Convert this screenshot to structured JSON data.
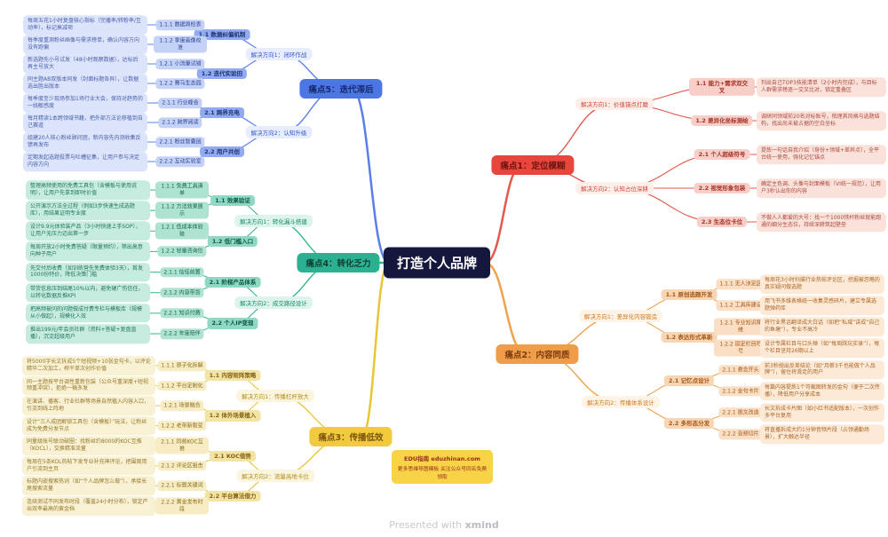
{
  "center": {
    "title": "打造个人品牌",
    "bg": "#15173d",
    "fg": "#ffffff"
  },
  "watermark": {
    "prefix": "Presented with",
    "brand": "xmind"
  },
  "footer_note": {
    "line1": "EDU指南 eduzhinan.com",
    "line2": "更多思维导图模板 关注公众号同名免费领取",
    "bg": "#f8d348",
    "fg": "#9b2c1c"
  },
  "branches": [
    {
      "label": "痛点1：定位模糊",
      "colors": {
        "label_bg": "#e8453c",
        "label_fg": "#6d1511",
        "line": "#e25a4e",
        "dir_bg": "#fdeeea",
        "dir_fg": "#cc4438",
        "topic_bg": "#f7cfc8",
        "topic_fg": "#a63327",
        "leaf_bg": "#f7cfc8",
        "leaf_fg": "#a63327",
        "detail_bg": "#fae2db",
        "detail_fg": "#ad4a3d"
      },
      "directions": [
        {
          "label": "解决方向1：价值锚点打磨",
          "topics": [
            {
              "label": "1.1 能力+需求双交叉",
              "detail": "列出自己TOP3技能清单（2小时内完成），与目标人群需求榜逐一交叉比对，锁定重叠区"
            },
            {
              "label": "1.2 差异化坐标测绘",
              "detail": "调研同领域前20名对标账号，梳理其风格与选题结构，找出尚未被占据的空白坐标"
            }
          ]
        },
        {
          "label": "解决方向2：认知占位深耕",
          "topics": [
            {
              "label": "2.1 个人超级符号",
              "detail": "提炼一句话自我介绍（身份+领域+差异点），全平台统一使用，强化记忆锚点"
            },
            {
              "label": "2.2 视觉形象包装",
              "detail": "确定主色调、头像与封面模板（VI统一规范），让用户3秒认出你的内容"
            },
            {
              "label": "2.3 生态位卡位",
              "detail": "不做人人都爱的大号：找一个1000铁杆粉丝就能跑通的细分生态位，持续深耕筑起壁垒"
            }
          ]
        }
      ]
    },
    {
      "label": "痛点2：内容同质",
      "colors": {
        "label_bg": "#ef9d48",
        "label_fg": "#7d3b0e",
        "line": "#f0a34e",
        "dir_bg": "#fdf3e6",
        "dir_fg": "#cf7a1f",
        "topic_bg": "#f8d6b4",
        "topic_fg": "#a55716",
        "leaf_bg": "#fadfc4",
        "leaf_fg": "#a55716",
        "detail_bg": "#fcead7",
        "detail_fg": "#ab6426"
      },
      "directions": [
        {
          "label": "解决方向1：差异化内容锻造",
          "topics": [
            {
              "label": "1.1 原创选题开发",
              "leaves": [
                {
                  "label": "1.1.1 无人涉足区",
                  "detail": "每周花3小时扫描行业热帖评论区，挖掘被忽略的真实疑问做选题"
                },
                {
                  "label": "1.1.2 工具库建设",
                  "detail": "用飞书多维表格统一收集灵感碎片，建立专属选题弹药库"
                }
              ]
            },
            {
              "label": "1.2 表达形式革新",
              "leaves": [
                {
                  "label": "1.2.1 专业知识降维",
                  "detail": "将行业黑话翻译成大白话（如把“私域”讲成“自己的鱼塘”），专业不高冷"
                },
                {
                  "label": "1.2.2 固定栏目符号",
                  "detail": "设计专属栏目与口头禅（如“每周踩坑实录”），每个栏目坚持26期以上"
                }
              ]
            }
          ]
        },
        {
          "label": "解决方向2：传播体系设计",
          "topics": [
            {
              "label": "2.1 记忆点设计",
              "leaves": [
                {
                  "label": "2.1.1 悬念开头",
                  "detail": "前3秒抛出反差结论（如“月薪3千也能做个人品牌”），留住将滑走的用户"
                },
                {
                  "label": "2.1.2 金句卡片",
                  "detail": "每篇内容提炼1个可截图转发的金句（便于二次传播），降低用户分享成本"
                }
              ]
            },
            {
              "label": "2.2 多形态分发",
              "leaves": [
                {
                  "label": "2.2.1 图文改造",
                  "detail": "长文拆成卡片图（如小红书适配版本），一次创作多平台复用"
                },
                {
                  "label": "2.2.2 音频切片",
                  "detail": "将直播拆成大约1分钟音频片段（占领通勤场景），扩大触达半径"
                }
              ]
            }
          ]
        }
      ]
    },
    {
      "label": "痛点3：传播低效",
      "colors": {
        "label_bg": "#f3c93d",
        "label_fg": "#7c5410",
        "line": "#e9c636",
        "dir_bg": "#fbf5de",
        "dir_fg": "#b08c1e",
        "topic_bg": "#f3e3a4",
        "topic_fg": "#846414",
        "leaf_bg": "#f7ecc3",
        "leaf_fg": "#8a6d1d",
        "detail_bg": "#f9f1d4",
        "detail_fg": "#95782a"
      },
      "directions": [
        {
          "label": "解决方向1：传播杠杆放大",
          "topics": [
            {
              "label": "1.1 内容矩阵策略",
              "leaves": [
                {
                  "label": "1.1.1 原子化拆解",
                  "detail": "将5000字长文拆成5个短视频+10张金句卡，以评论精华二次加工，榨干单次创作价值"
                },
                {
                  "label": "1.1.2 平台定制化",
                  "detail": "同一主题按平台调性重新包装（公众号重深度+短视频重冲突），拒绝一稿多发"
                }
              ]
            },
            {
              "label": "1.2 体外场景植入",
              "leaves": [
                {
                  "label": "1.2.1 场景融合",
                  "detail": "在演讲、播客、行业社群等场景自然植入内容入口，引流到线上阵地"
                },
                {
                  "label": "1.2.2 老带新裂变",
                  "detail": "设计“三人成团解锁工具包（含模板）”玩法，让粉丝成为免费分发节点"
                }
              ]
            }
          ]
        },
        {
          "label": "解决方向2：流量高地卡位",
          "topics": [
            {
              "label": "2.1 KOC借势",
              "leaves": [
                {
                  "label": "2.1.1 同频KOC互推",
                  "detail": "同量级账号联动破圈：找粉丝约8000的KOC互推（KOCL），交换精准流量"
                },
                {
                  "label": "2.1.2 评论区狙击",
                  "detail": "每周在5条KOL热帖下发专业补充神评论，把围观用户引流到主页"
                }
              ]
            },
            {
              "label": "2.2 平台算法借力",
              "leaves": [
                {
                  "label": "2.2.1 标题关键词",
                  "detail": "标题内嵌搜索热词（如“个人品牌怎么做”），承接长尾搜索流量"
                },
                {
                  "label": "2.2.2 黄金发布时段",
                  "detail": "连续测试不同发布时段（覆盖24小时分布），锁定产出效率最高的黄金档"
                }
              ]
            }
          ]
        }
      ]
    },
    {
      "label": "痛点4：转化乏力",
      "colors": {
        "label_bg": "#2bb191",
        "label_fg": "#123c30",
        "line": "#35b593",
        "dir_bg": "#ddf4ec",
        "dir_fg": "#158a69",
        "topic_bg": "#8fd8c3",
        "topic_fg": "#115743",
        "leaf_bg": "#aee3d2",
        "leaf_fg": "#156450",
        "detail_bg": "#c6ecdf",
        "detail_fg": "#23755f"
      },
      "directions": [
        {
          "label": "解决方向1：转化漏斗搭建",
          "topics": [
            {
              "label": "1.1 效果验证",
              "leaves": [
                {
                  "label": "1.1.1 免费工具清单",
                  "detail": "整理高频使用的免费工具包（含模板与使用说明），让用户先拿到即时价值"
                },
                {
                  "label": "1.1.2 方法效果展示",
                  "detail": "公开演示方法全过程（例如3步快速生成选题库），用结果证明专业度"
                }
              ]
            },
            {
              "label": "1.2 低门槛入口",
              "leaves": [
                {
                  "label": "1.2.1 低成本体验装",
                  "detail": "设计9.9元体验装产品（3小时快速上手SOP），让用户无压力迈出第一步"
                },
                {
                  "label": "1.2.2 轻量咨询位",
                  "detail": "每周开放2小时免费答疑（限量预约），筛出高意向种子用户"
                }
              ]
            }
          ]
        },
        {
          "label": "解决方向2：成交路径设计",
          "topics": [
            {
              "label": "2.1 阶梯产品体系",
              "leaves": [
                {
                  "label": "2.1.1 信任前置",
                  "detail": "先交付后收费（如训练营先免费体验3天），首发1000份特价，降低决策门槛"
                },
                {
                  "label": "2.1.2 内容带货",
                  "detail": "带货信息压到结尾10%以内，避免硬广伤信任，以转化数据反推KPI"
                }
              ]
            },
            {
              "label": "2.2 个人IP变现",
              "leaves": [
                {
                  "label": "2.2.1 知识付费",
                  "detail": "把高频被问的问题做成付费专栏与模板库（规模从小做起），规模化人效"
                },
                {
                  "label": "2.2.2 年度陪伴",
                  "detail": "推出199元/年会员社群（资料+答疑+复盘直播），沉淀超级用户"
                }
              ]
            }
          ]
        }
      ]
    },
    {
      "label": "痛点5：迭代滞后",
      "colors": {
        "label_bg": "#4b76e3",
        "label_fg": "#152a6e",
        "line": "#5a80e8",
        "dir_bg": "#e7edfc",
        "dir_fg": "#3558c9",
        "topic_bg": "#92abf0",
        "topic_fg": "#1d3573",
        "leaf_bg": "#c5d2f8",
        "leaf_fg": "#2c4390",
        "detail_bg": "#dbe4fb",
        "detail_fg": "#4a5fa8"
      },
      "directions": [
        {
          "label": "解决方向1：闭环作战",
          "topics": [
            {
              "label": "1.1 数据纠偏机制",
              "leaves": [
                {
                  "label": "1.1.1 数据周检表",
                  "detail": "每周五花1小时复盘核心指标（完播率/转粉率/互动率），标记衰减项"
                },
                {
                  "label": "1.1.2 季度画像校准",
                  "detail": "每季度重测粉丝画像与需求榜单，确认内容方向没有跑偏"
                }
              ]
            },
            {
              "label": "1.2 迭代实验田",
              "leaves": [
                {
                  "label": "1.2.1 小流量试错",
                  "detail": "新选题先小号试发（48小时观察数据），达标后再主号放大"
                },
                {
                  "label": "1.2.2 赛马生态园",
                  "detail": "同主题AB双版本同发（封面标题各异），让数据选出胜出版本"
                }
              ]
            }
          ]
        },
        {
          "label": "解决方向2：认知升级",
          "topics": [
            {
              "label": "2.1 跨界充电",
              "leaves": [
                {
                  "label": "2.1.1 行业峰会",
                  "detail": "每季度至少现场参加1场行业大会，保持对趋势的一线敏感度"
                },
                {
                  "label": "2.1.2 跨界阅读",
                  "detail": "每月精读1本跨领域书籍，把外部方法论移植到自己赛道"
                }
              ]
            },
            {
              "label": "2.2 用户共创",
              "leaves": [
                {
                  "label": "2.2.1 粉丝智囊团",
                  "detail": "组建20人核心粉丝顾问团，新内容先内测收集反馈再发布"
                },
                {
                  "label": "2.2.2 互动实验室",
                  "detail": "定期发起选题投票与吐槽征集，让用户参与决定内容方向"
                }
              ]
            }
          ]
        }
      ]
    }
  ]
}
